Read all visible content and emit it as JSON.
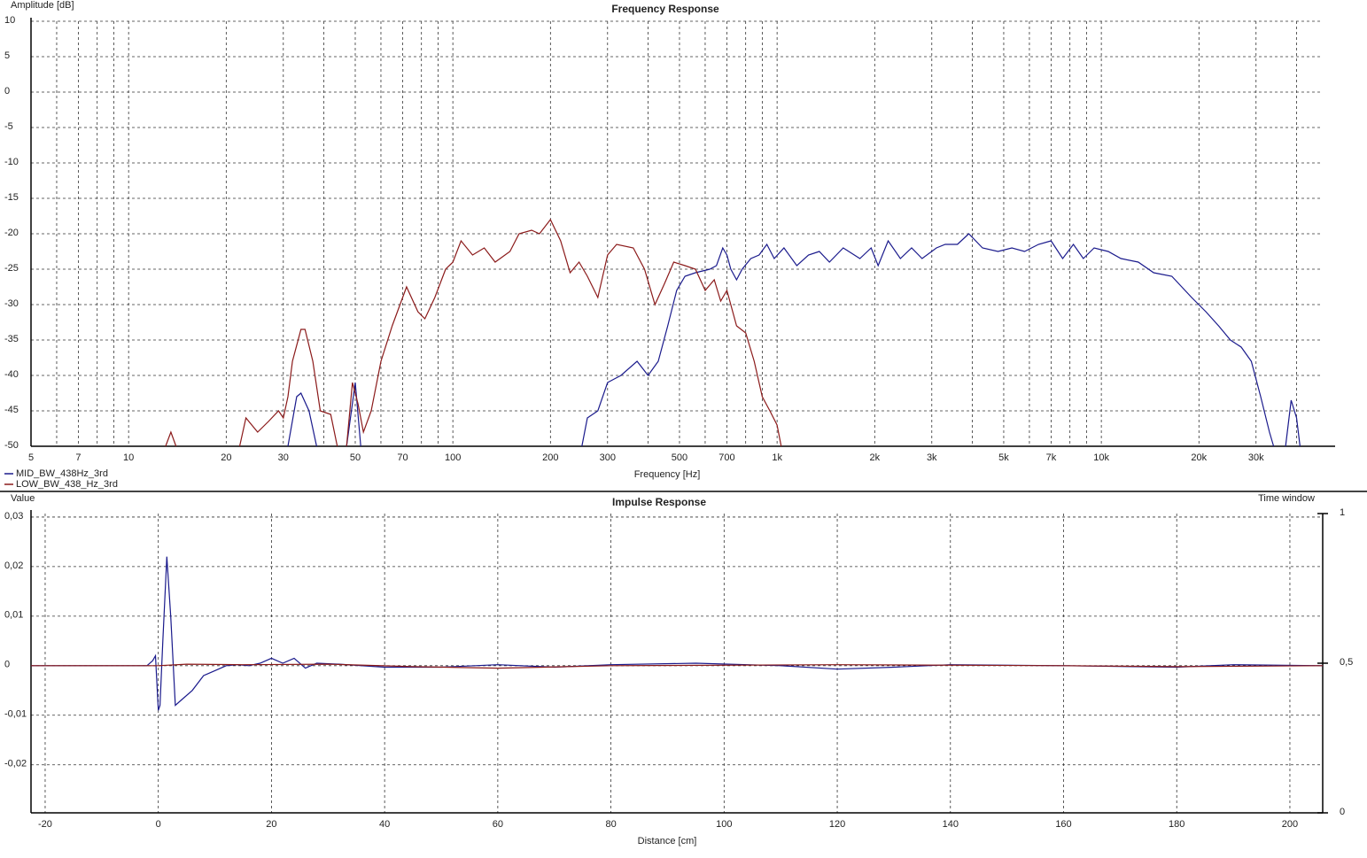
{
  "chart_data": [
    {
      "type": "line",
      "title": "Frequency Response",
      "xlabel": "Frequency [Hz]",
      "ylabel": "Amplitude [dB]",
      "xscale": "log",
      "xlim": [
        5,
        52600
      ],
      "ylim": [
        -50,
        10
      ],
      "grid": true,
      "legend": "below-left",
      "xticks": [
        5,
        7,
        10,
        20,
        30,
        50,
        70,
        100,
        200,
        300,
        500,
        700,
        {
          "value": 1000,
          "label": "1k"
        },
        {
          "value": 2000,
          "label": "2k"
        },
        {
          "value": 3000,
          "label": "3k"
        },
        {
          "value": 5000,
          "label": "5k"
        },
        {
          "value": 7000,
          "label": "7k"
        },
        {
          "value": 10000,
          "label": "10k"
        },
        {
          "value": 20000,
          "label": "20k"
        },
        {
          "value": 30000,
          "label": "30k"
        }
      ],
      "xminor": [
        6,
        8,
        9,
        40,
        60,
        80,
        90,
        400,
        600,
        800,
        900,
        4000,
        6000,
        8000,
        9000,
        40000
      ],
      "yticks": [
        10,
        5,
        0,
        -5,
        -10,
        -15,
        -20,
        -25,
        -30,
        -35,
        -40,
        -45,
        -50
      ],
      "series": [
        {
          "name": "MID_BW_438Hz_3rd",
          "color": "#1a1a8c",
          "x": [
            31,
            33,
            34,
            36,
            38,
            40,
            47,
            50,
            52,
            55,
            250,
            260,
            280,
            300,
            330,
            370,
            400,
            430,
            460,
            490,
            520,
            560,
            620,
            650,
            680,
            700,
            720,
            750,
            780,
            830,
            880,
            930,
            980,
            1050,
            1150,
            1250,
            1350,
            1450,
            1600,
            1800,
            1950,
            2050,
            2200,
            2400,
            2600,
            2800,
            3100,
            3300,
            3600,
            3900,
            4300,
            4800,
            5300,
            5800,
            6400,
            7000,
            7600,
            8200,
            8800,
            9500,
            10500,
            11500,
            13000,
            14500,
            16500,
            19000,
            21000,
            23000,
            25000,
            27000,
            29000,
            31000,
            33000,
            34000,
            35000,
            37000,
            38500,
            40000,
            41000
          ],
          "values": [
            -50,
            -43,
            -42.5,
            -45,
            -50,
            null,
            -50,
            -41,
            -50,
            null,
            -50,
            -46,
            -45,
            -41,
            -40,
            -38,
            -40,
            -38,
            -33,
            -28,
            -26,
            -25.5,
            -25,
            -24.5,
            -22,
            -23,
            -25,
            -26.5,
            -25,
            -23.5,
            -23,
            -21.5,
            -23.5,
            -22,
            -24.5,
            -23,
            -22.5,
            -24,
            -22,
            -23.5,
            -22,
            -24.5,
            -21,
            -23.5,
            -22,
            -23.5,
            -22,
            -21.5,
            -21.5,
            -20,
            -22,
            -22.5,
            -22,
            -22.5,
            -21.5,
            -21,
            -23.5,
            -21.5,
            -23.5,
            -22,
            -22.5,
            -23.5,
            -24,
            -25.5,
            -26,
            -29,
            -31,
            -33,
            -35,
            -36,
            -38,
            -43,
            -48,
            -50,
            null,
            -50,
            -43.5,
            -46,
            -50
          ]
        },
        {
          "name": "LOW_BW_438_Hz_3rd",
          "color": "#8b1a1a",
          "x": [
            13,
            13.5,
            14,
            18,
            22,
            23,
            25,
            27,
            29,
            30,
            31,
            32,
            34,
            35,
            37,
            39,
            42,
            44,
            45,
            47,
            49,
            51,
            53,
            56,
            60,
            65,
            72,
            78,
            82,
            88,
            95,
            100,
            106,
            115,
            125,
            135,
            150,
            160,
            175,
            185,
            200,
            215,
            230,
            245,
            260,
            280,
            300,
            320,
            360,
            390,
            420,
            450,
            480,
            520,
            560,
            600,
            640,
            670,
            700,
            750,
            800,
            850,
            900,
            950,
            1000,
            1030
          ],
          "values": [
            -50,
            -48,
            -50,
            null,
            -50,
            -46,
            -48,
            -46.5,
            -45,
            -46,
            -43,
            -38,
            -33.5,
            -33.5,
            -38,
            -45,
            -45.5,
            -50,
            null,
            -50,
            -41,
            -44,
            -48,
            -45,
            -38,
            -33,
            -27.5,
            -31,
            -32,
            -29,
            -25,
            -24,
            -21,
            -23,
            -22,
            -24,
            -22.5,
            -20,
            -19.5,
            -20,
            -18,
            -21,
            -25.5,
            -24,
            -26,
            -29,
            -23,
            -21.5,
            -22,
            -25,
            -30,
            -27,
            -24,
            -24.5,
            -25,
            -28,
            -26.5,
            -29.5,
            -28,
            -33,
            -34,
            -38,
            -43,
            -45,
            -47,
            -50
          ]
        }
      ]
    },
    {
      "type": "line",
      "title": "Impulse Response",
      "xlabel": "Distance [cm]",
      "ylabel": "Value",
      "y2label": "Time window",
      "xlim": [
        -22.5,
        205.8
      ],
      "ylim": [
        -0.0297,
        0.0307
      ],
      "y2lim": [
        0,
        1
      ],
      "grid": true,
      "xticks": [
        -20,
        0,
        20,
        40,
        60,
        80,
        100,
        120,
        140,
        160,
        180,
        200
      ],
      "yticks": [
        {
          "value": 0.03,
          "label": "0,03"
        },
        {
          "value": 0.02,
          "label": "0,02"
        },
        {
          "value": 0.01,
          "label": "0,01"
        },
        0,
        {
          "value": -0.01,
          "label": "-0,01"
        },
        {
          "value": -0.02,
          "label": "-0,02"
        }
      ],
      "y2ticks": [
        1,
        {
          "value": 0.5,
          "label": "0,5"
        },
        0
      ],
      "series": [
        {
          "name": "MID_BW_438Hz_3rd",
          "color": "#1a1a8c",
          "x": [
            -22.5,
            -2,
            -1,
            -0.5,
            0,
            0.3,
            0.8,
            1.5,
            2.2,
            3,
            4,
            6,
            8,
            10,
            12,
            14,
            16,
            18,
            20,
            22,
            24,
            26,
            28,
            32,
            40,
            50,
            60,
            70,
            80,
            95,
            110,
            120,
            130,
            140,
            160,
            180,
            190,
            205.8
          ],
          "values": [
            0,
            0,
            0.001,
            0.002,
            -0.009,
            -0.008,
            0.005,
            0.022,
            0.01,
            -0.008,
            -0.007,
            -0.005,
            -0.002,
            -0.001,
            0,
            0.0002,
            0,
            0.0005,
            0.0015,
            0.0005,
            0.0015,
            -0.0005,
            0.0005,
            0.0003,
            -0.0003,
            -0.0003,
            0.0002,
            -0.0003,
            0.0002,
            0.0005,
            0,
            -0.0007,
            -0.0003,
            0.0002,
            0,
            -0.0003,
            0.0002,
            0
          ]
        },
        {
          "name": "LOW_BW_438_Hz_3rd",
          "color": "#8b1a1a",
          "x": [
            -22.5,
            0,
            5,
            15,
            30,
            45,
            60,
            80,
            120,
            160,
            180,
            205.8
          ],
          "values": [
            0,
            0,
            0.0003,
            0.0002,
            0.0003,
            -0.0002,
            -0.0005,
            0,
            0.0002,
            0,
            -0.0002,
            0
          ]
        }
      ]
    }
  ]
}
